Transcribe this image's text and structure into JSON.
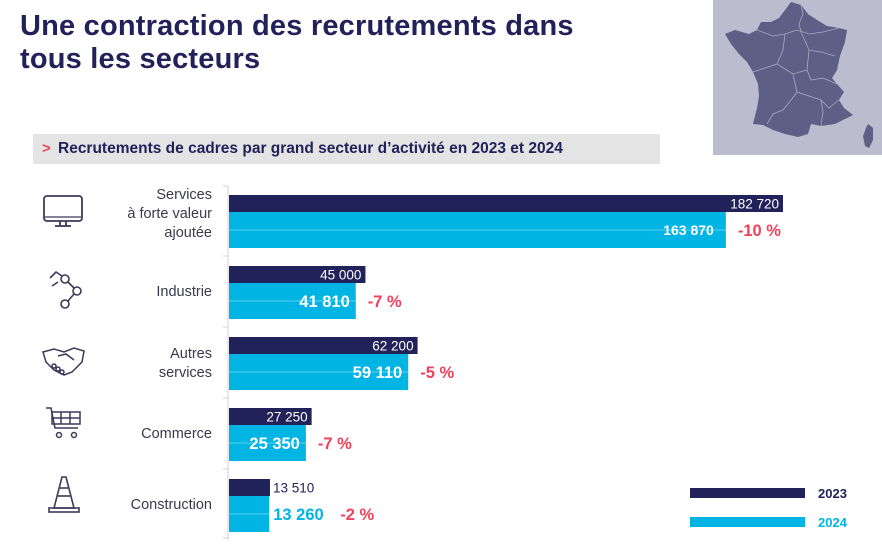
{
  "title": "Une contraction des recrutements dans tous les secteurs",
  "title_lines": [
    "Une contraction des recrutements dans",
    "tous les secteurs"
  ],
  "subtitle_marker": ">",
  "subtitle": "Recrutements de cadres par grand secteur d’activité en 2023 et 2024",
  "colors": {
    "series_2023": "#22225a",
    "series_2024": "#00b4e4",
    "change": "#f0405a",
    "title": "#22215a"
  },
  "categories": [
    {
      "label_lines": [
        "Services",
        "à forte valeur",
        "ajoutée"
      ],
      "icon": "monitor-icon"
    },
    {
      "label_lines": [
        "Industrie"
      ],
      "icon": "robot-arm-icon"
    },
    {
      "label_lines": [
        "Autres",
        "services"
      ],
      "icon": "handshake-icon"
    },
    {
      "label_lines": [
        "Commerce"
      ],
      "icon": "shopping-cart-icon"
    },
    {
      "label_lines": [
        "Construction"
      ],
      "icon": "traffic-cone-icon"
    }
  ],
  "chart_data": {
    "type": "bar",
    "orientation": "horizontal",
    "title": "Recrutements de cadres par grand secteur d’activité en 2023 et 2024",
    "categories": [
      "Services à forte valeur ajoutée",
      "Industrie",
      "Autres services",
      "Commerce",
      "Construction"
    ],
    "series": [
      {
        "name": "2023",
        "values": [
          182720,
          45000,
          62200,
          27250,
          13510
        ],
        "labels": [
          "182 720",
          "45 000",
          "62 200",
          "27 250",
          "13 510"
        ]
      },
      {
        "name": "2024",
        "values": [
          163870,
          41810,
          59110,
          25350,
          13260
        ],
        "labels": [
          "163 870",
          "41 810",
          "59 110",
          "25 350",
          "13 260"
        ]
      }
    ],
    "change_labels": [
      "-10 %",
      "-7 %",
      "-5 %",
      "-7 %",
      "-2 %"
    ],
    "xlabel": "",
    "ylabel": "",
    "xlim": [
      0,
      182720
    ],
    "grid": false,
    "legend": {
      "entries": [
        "2023",
        "2024"
      ],
      "position": "bottom-right"
    }
  }
}
